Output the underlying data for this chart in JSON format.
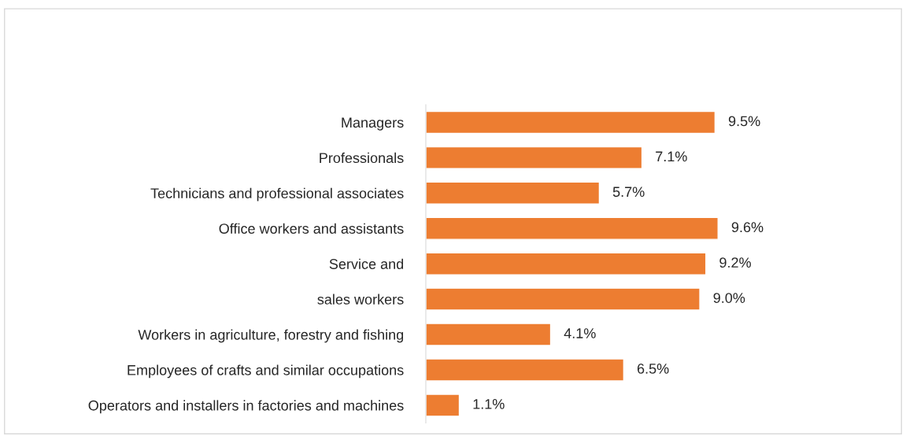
{
  "chart_data": {
    "type": "bar",
    "orientation": "horizontal",
    "categories": [
      "Managers",
      "Professionals",
      "Technicians and professional associates",
      "Office workers and assistants",
      "Service and",
      "sales workers",
      "Workers in agriculture, forestry and fishing",
      "Employees of crafts and similar occupations",
      "Operators and installers in factories and machines"
    ],
    "values": [
      9.5,
      7.1,
      5.7,
      9.6,
      9.2,
      9.0,
      4.1,
      6.5,
      1.1
    ],
    "value_labels": [
      "9.5%",
      "7.1%",
      "5.7%",
      "9.6%",
      "9.2%",
      "9.0%",
      "4.1%",
      "6.5%",
      "1.1%"
    ],
    "color": "#ed7d31",
    "grid": false,
    "legend": false
  }
}
